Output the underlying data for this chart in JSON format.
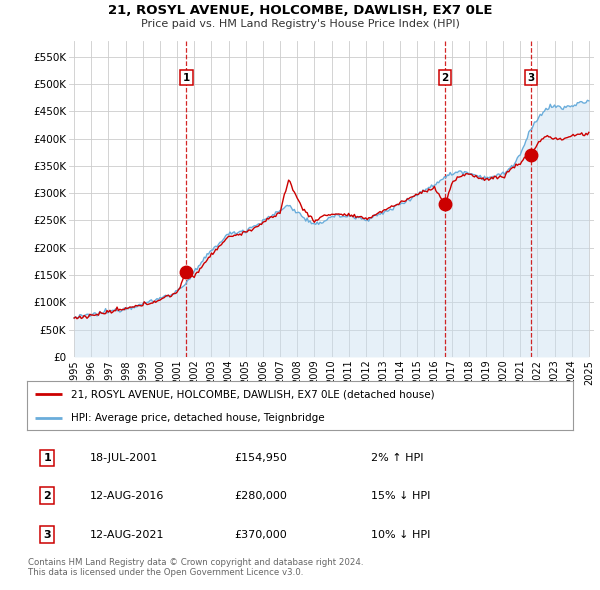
{
  "title": "21, ROSYL AVENUE, HOLCOMBE, DAWLISH, EX7 0LE",
  "subtitle": "Price paid vs. HM Land Registry's House Price Index (HPI)",
  "ylabel_ticks": [
    "£0",
    "£50K",
    "£100K",
    "£150K",
    "£200K",
    "£250K",
    "£300K",
    "£350K",
    "£400K",
    "£450K",
    "£500K",
    "£550K"
  ],
  "ytick_values": [
    0,
    50000,
    100000,
    150000,
    200000,
    250000,
    300000,
    350000,
    400000,
    450000,
    500000,
    550000
  ],
  "ylim": [
    0,
    578000
  ],
  "xlim_start": 1994.7,
  "xlim_end": 2025.3,
  "sale_dates": [
    2001.54,
    2016.62,
    2021.62
  ],
  "sale_prices": [
    154950,
    280000,
    370000
  ],
  "sale_labels": [
    "1",
    "2",
    "3"
  ],
  "dashed_line_color": "#cc0000",
  "hpi_fill_color": "#c8dff0",
  "hpi_line_color": "#6aaddb",
  "price_line_color": "#cc0000",
  "marker_color": "#cc0000",
  "legend_entries": [
    "21, ROSYL AVENUE, HOLCOMBE, DAWLISH, EX7 0LE (detached house)",
    "HPI: Average price, detached house, Teignbridge"
  ],
  "table_rows": [
    [
      "1",
      "18-JUL-2001",
      "£154,950",
      "2% ↑ HPI"
    ],
    [
      "2",
      "12-AUG-2016",
      "£280,000",
      "15% ↓ HPI"
    ],
    [
      "3",
      "12-AUG-2021",
      "£370,000",
      "10% ↓ HPI"
    ]
  ],
  "footer": "Contains HM Land Registry data © Crown copyright and database right 2024.\nThis data is licensed under the Open Government Licence v3.0.",
  "bg_color": "#ffffff",
  "grid_color": "#cccccc",
  "xtick_years": [
    1995,
    1996,
    1997,
    1998,
    1999,
    2000,
    2001,
    2002,
    2003,
    2004,
    2005,
    2006,
    2007,
    2008,
    2009,
    2010,
    2011,
    2012,
    2013,
    2014,
    2015,
    2016,
    2017,
    2018,
    2019,
    2020,
    2021,
    2022,
    2023,
    2024,
    2025
  ],
  "hpi_anchors": [
    [
      1995.0,
      72000
    ],
    [
      1996.0,
      77000
    ],
    [
      1997.0,
      83000
    ],
    [
      1998.0,
      89000
    ],
    [
      1999.0,
      97000
    ],
    [
      2000.0,
      107000
    ],
    [
      2001.0,
      120000
    ],
    [
      2001.5,
      135000
    ],
    [
      2002.0,
      155000
    ],
    [
      2003.0,
      195000
    ],
    [
      2004.0,
      225000
    ],
    [
      2005.0,
      232000
    ],
    [
      2006.0,
      248000
    ],
    [
      2007.0,
      268000
    ],
    [
      2007.5,
      278000
    ],
    [
      2008.0,
      265000
    ],
    [
      2009.0,
      240000
    ],
    [
      2009.5,
      248000
    ],
    [
      2010.0,
      258000
    ],
    [
      2011.0,
      258000
    ],
    [
      2012.0,
      252000
    ],
    [
      2013.0,
      263000
    ],
    [
      2014.0,
      280000
    ],
    [
      2015.0,
      298000
    ],
    [
      2016.0,
      315000
    ],
    [
      2016.5,
      328000
    ],
    [
      2017.0,
      335000
    ],
    [
      2017.5,
      340000
    ],
    [
      2018.0,
      338000
    ],
    [
      2018.5,
      332000
    ],
    [
      2019.0,
      328000
    ],
    [
      2019.5,
      330000
    ],
    [
      2020.0,
      335000
    ],
    [
      2020.5,
      348000
    ],
    [
      2021.0,
      370000
    ],
    [
      2021.5,
      408000
    ],
    [
      2022.0,
      435000
    ],
    [
      2022.5,
      455000
    ],
    [
      2023.0,
      460000
    ],
    [
      2023.5,
      455000
    ],
    [
      2024.0,
      460000
    ],
    [
      2024.5,
      465000
    ],
    [
      2025.0,
      468000
    ]
  ],
  "price_anchors": [
    [
      1995.0,
      71000
    ],
    [
      1996.0,
      76000
    ],
    [
      1997.0,
      82000
    ],
    [
      1998.0,
      88000
    ],
    [
      1999.0,
      95000
    ],
    [
      2000.0,
      105000
    ],
    [
      2001.0,
      118000
    ],
    [
      2001.54,
      154950
    ],
    [
      2002.0,
      148000
    ],
    [
      2003.0,
      188000
    ],
    [
      2004.0,
      220000
    ],
    [
      2005.0,
      228000
    ],
    [
      2006.0,
      245000
    ],
    [
      2007.0,
      265000
    ],
    [
      2007.5,
      325000
    ],
    [
      2008.0,
      290000
    ],
    [
      2008.5,
      265000
    ],
    [
      2009.0,
      248000
    ],
    [
      2009.5,
      258000
    ],
    [
      2010.0,
      262000
    ],
    [
      2011.0,
      260000
    ],
    [
      2012.0,
      252000
    ],
    [
      2013.0,
      268000
    ],
    [
      2014.0,
      282000
    ],
    [
      2015.0,
      298000
    ],
    [
      2016.0,
      310000
    ],
    [
      2016.62,
      280000
    ],
    [
      2017.0,
      315000
    ],
    [
      2017.3,
      328000
    ],
    [
      2018.0,
      335000
    ],
    [
      2018.5,
      330000
    ],
    [
      2019.0,
      325000
    ],
    [
      2019.5,
      328000
    ],
    [
      2020.0,
      330000
    ],
    [
      2020.5,
      345000
    ],
    [
      2021.0,
      355000
    ],
    [
      2021.5,
      370000
    ],
    [
      2021.62,
      370000
    ],
    [
      2022.0,
      390000
    ],
    [
      2022.5,
      405000
    ],
    [
      2023.0,
      400000
    ],
    [
      2023.5,
      398000
    ],
    [
      2024.0,
      405000
    ],
    [
      2024.5,
      408000
    ],
    [
      2025.0,
      408000
    ]
  ]
}
